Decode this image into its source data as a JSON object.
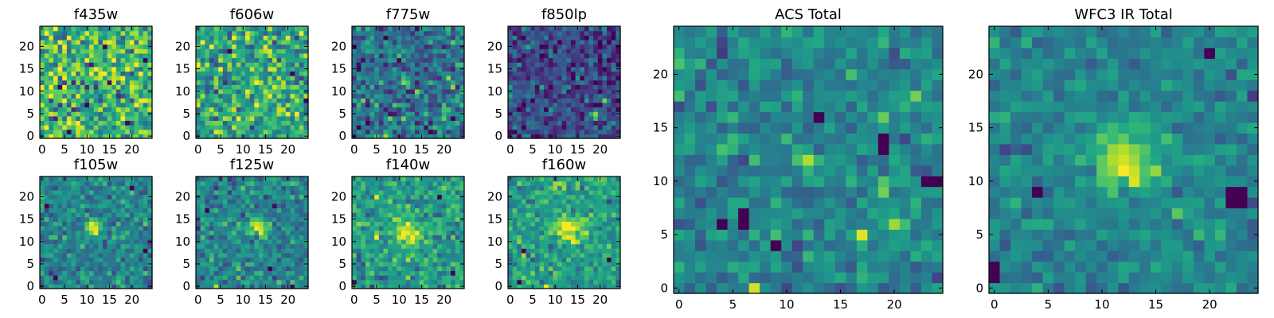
{
  "chart_data": {
    "type": "heatmap",
    "colormap": "viridis",
    "grid_size": 25,
    "panels": [
      {
        "title": "f435w",
        "xticks": [
          "0",
          "5",
          "10",
          "15",
          "20"
        ],
        "yticks": [
          "0",
          "5",
          "10",
          "15",
          "20"
        ],
        "xlim": [
          -0.5,
          24.5
        ],
        "ylim": [
          -0.5,
          24.5
        ],
        "noise_mean": 0.66,
        "noise_std": 0.2,
        "features": [],
        "lows": [
          [
            14,
            20
          ],
          [
            4,
            11
          ],
          [
            23,
            17
          ],
          [
            10,
            7
          ],
          [
            19,
            3
          ],
          [
            6,
            1
          ]
        ]
      },
      {
        "title": "f606w",
        "xticks": [
          "0",
          "5",
          "10",
          "15",
          "20"
        ],
        "yticks": [
          "0",
          "5",
          "10",
          "15",
          "20"
        ],
        "xlim": [
          -0.5,
          24.5
        ],
        "ylim": [
          -0.5,
          24.5
        ],
        "noise_mean": 0.6,
        "noise_std": 0.18,
        "features": [
          {
            "x": 13,
            "y": 12,
            "sigma": 1.0,
            "amp": 0.25
          }
        ],
        "lows": [
          [
            21,
            14
          ],
          [
            7,
            19
          ],
          [
            24,
            8
          ]
        ]
      },
      {
        "title": "f775w",
        "xticks": [
          "0",
          "5",
          "10",
          "15",
          "20"
        ],
        "yticks": [
          "0",
          "5",
          "10",
          "15",
          "20"
        ],
        "xlim": [
          -0.5,
          24.5
        ],
        "ylim": [
          -0.5,
          24.5
        ],
        "noise_mean": 0.36,
        "noise_std": 0.16,
        "features": [
          {
            "x": 20,
            "y": 6,
            "sigma": 0.7,
            "amp": 0.6
          },
          {
            "x": 12,
            "y": 12,
            "sigma": 0.7,
            "amp": 0.4
          },
          {
            "x": 7,
            "y": 0,
            "sigma": 0.6,
            "amp": 0.5
          }
        ],
        "lows": [
          [
            3,
            3
          ],
          [
            22,
            4
          ],
          [
            1,
            15
          ]
        ]
      },
      {
        "title": "f850lp",
        "xticks": [
          "0",
          "5",
          "10",
          "15",
          "20"
        ],
        "yticks": [
          "0",
          "5",
          "10",
          "15",
          "20"
        ],
        "xlim": [
          -0.5,
          24.5
        ],
        "ylim": [
          -0.5,
          24.5
        ],
        "noise_mean": 0.22,
        "noise_std": 0.13,
        "features": [
          {
            "x": 19,
            "y": 5,
            "sigma": 0.7,
            "amp": 0.65
          },
          {
            "x": 21,
            "y": 8,
            "sigma": 0.6,
            "amp": 0.7
          }
        ],
        "lows": []
      },
      {
        "title": "f105w",
        "xticks": [
          "0",
          "5",
          "10",
          "15",
          "20"
        ],
        "yticks": [
          "0",
          "5",
          "10",
          "15",
          "20"
        ],
        "xlim": [
          -0.5,
          24.5
        ],
        "ylim": [
          -0.5,
          24.5
        ],
        "noise_mean": 0.45,
        "noise_std": 0.12,
        "features": [
          {
            "x": 12,
            "y": 13,
            "sigma": 1.4,
            "amp": 0.5
          }
        ],
        "lows": [
          [
            23,
            8
          ],
          [
            3,
            2
          ],
          [
            20,
            22
          ]
        ]
      },
      {
        "title": "f125w",
        "xticks": [
          "0",
          "5",
          "10",
          "15",
          "20"
        ],
        "yticks": [
          "0",
          "5",
          "10",
          "15",
          "20"
        ],
        "xlim": [
          -0.5,
          24.5
        ],
        "ylim": [
          -0.5,
          24.5
        ],
        "noise_mean": 0.45,
        "noise_std": 0.12,
        "features": [
          {
            "x": 13,
            "y": 13,
            "sigma": 1.6,
            "amp": 0.5
          }
        ],
        "lows": [
          [
            16,
            4
          ],
          [
            2,
            17
          ],
          [
            21,
            0
          ]
        ]
      },
      {
        "title": "f140w",
        "xticks": [
          "0",
          "5",
          "10",
          "15",
          "20"
        ],
        "yticks": [
          "0",
          "5",
          "10",
          "15",
          "20"
        ],
        "xlim": [
          -0.5,
          24.5
        ],
        "ylim": [
          -0.5,
          24.5
        ],
        "noise_mean": 0.55,
        "noise_std": 0.12,
        "features": [
          {
            "x": 12,
            "y": 12,
            "sigma": 2.2,
            "amp": 0.4
          }
        ],
        "lows": [
          [
            0,
            1
          ],
          [
            22,
            3
          ],
          [
            19,
            20
          ]
        ]
      },
      {
        "title": "f160w",
        "xticks": [
          "0",
          "5",
          "10",
          "15",
          "20"
        ],
        "yticks": [
          "0",
          "5",
          "10",
          "15",
          "20"
        ],
        "xlim": [
          -0.5,
          24.5
        ],
        "ylim": [
          -0.5,
          24.5
        ],
        "noise_mean": 0.55,
        "noise_std": 0.12,
        "features": [
          {
            "x": 13,
            "y": 13,
            "sigma": 2.0,
            "amp": 0.45
          }
        ],
        "lows": [
          [
            3,
            8
          ],
          [
            22,
            6
          ],
          [
            2,
            1
          ]
        ]
      },
      {
        "title": "ACS Total",
        "xticks": [
          "0",
          "5",
          "10",
          "15",
          "20"
        ],
        "yticks": [
          "0",
          "5",
          "10",
          "15",
          "20"
        ],
        "xlim": [
          -0.5,
          24.5
        ],
        "ylim": [
          -0.5,
          24.5
        ],
        "noise_mean": 0.45,
        "noise_std": 0.1,
        "features": [
          {
            "x": 12,
            "y": 12,
            "sigma": 0.6,
            "amp": 0.5
          },
          {
            "x": 19,
            "y": 9,
            "sigma": 0.6,
            "amp": 0.5
          },
          {
            "x": 20,
            "y": 6,
            "sigma": 0.5,
            "amp": 0.45
          },
          {
            "x": 17,
            "y": 5,
            "sigma": 0.6,
            "amp": 0.45
          },
          {
            "x": 7,
            "y": 0,
            "sigma": 0.4,
            "amp": 0.5
          }
        ],
        "lows": [
          [
            19,
            13
          ],
          [
            19,
            14
          ],
          [
            13,
            16
          ],
          [
            6,
            6
          ],
          [
            4,
            6
          ],
          [
            23,
            10
          ],
          [
            24,
            10
          ],
          [
            6,
            7
          ],
          [
            9,
            4
          ]
        ]
      },
      {
        "title": "WFC3 IR Total",
        "xticks": [
          "0",
          "5",
          "10",
          "15",
          "20"
        ],
        "yticks": [
          "0",
          "5",
          "10",
          "15",
          "20"
        ],
        "xlim": [
          -0.5,
          24.5
        ],
        "ylim": [
          -0.5,
          24.5
        ],
        "noise_mean": 0.45,
        "noise_std": 0.08,
        "features": [
          {
            "x": 12,
            "y": 12,
            "sigma": 2.0,
            "amp": 0.5
          }
        ],
        "lows": [
          [
            22,
            8
          ],
          [
            23,
            8
          ],
          [
            22,
            9
          ],
          [
            23,
            9
          ],
          [
            0,
            1
          ],
          [
            0,
            2
          ],
          [
            4,
            9
          ],
          [
            20,
            22
          ]
        ]
      }
    ]
  }
}
